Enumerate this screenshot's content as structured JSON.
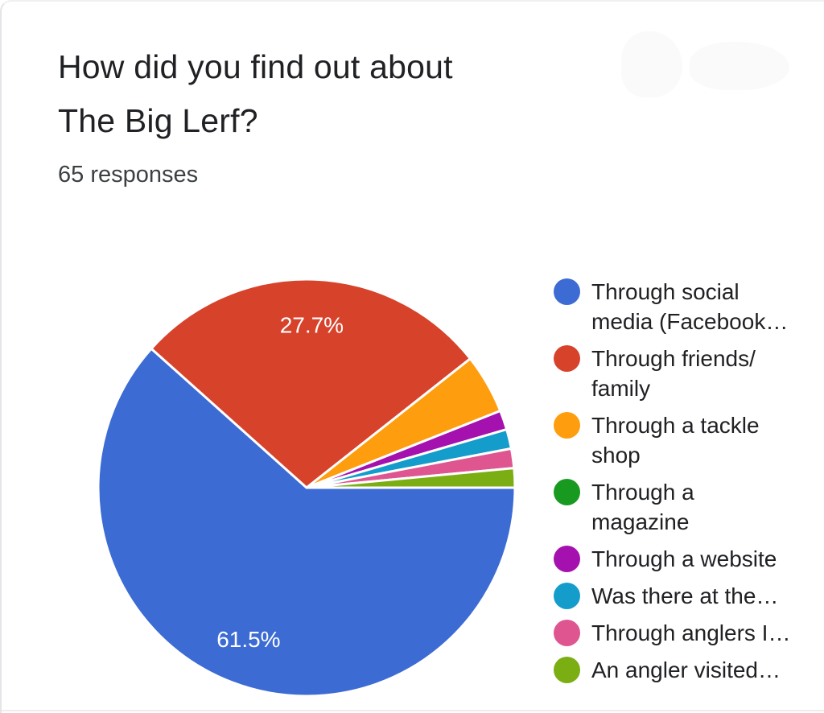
{
  "header": {
    "title": "How did you find out about The Big Lerf?",
    "title_lines": [
      "How did you find out about",
      "The Big Lerf?"
    ],
    "subtitle": "65 responses"
  },
  "chart_data": {
    "type": "pie",
    "title": "How did you find out about The Big Lerf?",
    "subtitle": "65 responses",
    "total_responses": 65,
    "legend_position": "right",
    "direction": "clockwise",
    "start_angle_deg": 0,
    "slice_border_color": "#ffffff",
    "percent_label_color": "#ffffff",
    "slices": [
      {
        "label": "Through social media (Facebook…",
        "legend_lines": [
          "Through social",
          "media (Facebook…"
        ],
        "percent": 61.5,
        "responses": 40,
        "color": "#3C6BD4",
        "percent_label": "61.5%"
      },
      {
        "label": "Through friends/family",
        "legend_lines": [
          "Through friends/",
          "family"
        ],
        "percent": 27.7,
        "responses": 18,
        "color": "#D7422B",
        "percent_label": "27.7%"
      },
      {
        "label": "Through a tackle shop",
        "legend_lines": [
          "Through a tackle",
          "shop"
        ],
        "percent": 4.6,
        "responses": 3,
        "color": "#FE9D0D",
        "percent_label": ""
      },
      {
        "label": "Through a magazine",
        "legend_lines": [
          "Through a",
          "magazine"
        ],
        "percent": 0.0,
        "responses": 0,
        "color": "#189A20",
        "percent_label": ""
      },
      {
        "label": "Through a website",
        "legend_lines": [
          "Through a website"
        ],
        "percent": 1.5,
        "responses": 1,
        "color": "#A511AE",
        "percent_label": ""
      },
      {
        "label": "Was there at the…",
        "legend_lines": [
          "Was there at the…"
        ],
        "percent": 1.5,
        "responses": 1,
        "color": "#149CCB",
        "percent_label": ""
      },
      {
        "label": "Through anglers I…",
        "legend_lines": [
          "Through anglers I…"
        ],
        "percent": 1.5,
        "responses": 1,
        "color": "#DE5590",
        "percent_label": ""
      },
      {
        "label": "An angler visited…",
        "legend_lines": [
          "An angler visited…"
        ],
        "percent": 1.5,
        "responses": 1,
        "color": "#7BAE13",
        "percent_label": ""
      }
    ]
  }
}
